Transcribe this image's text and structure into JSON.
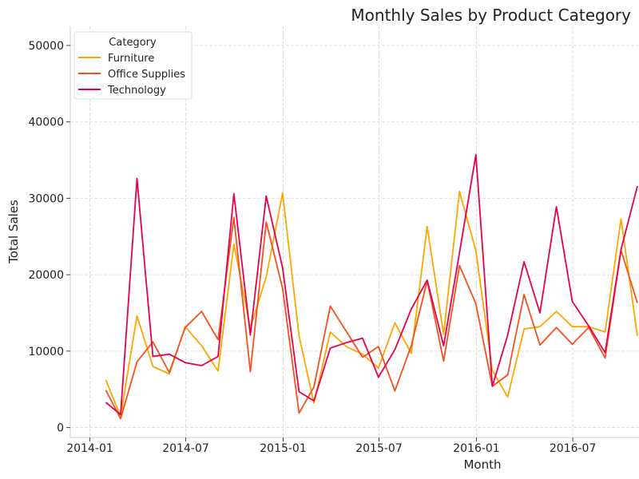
{
  "chart_data": {
    "type": "line",
    "title": "Monthly Sales by Product Category",
    "xlabel": "Month",
    "ylabel": "Total Sales",
    "xlim": [
      "2013-11-25",
      "2016-11-03"
    ],
    "ylim": [
      -1300,
      52500
    ],
    "x_ticks": [
      "2014-01",
      "2014-07",
      "2015-01",
      "2015-07",
      "2016-01",
      "2016-07"
    ],
    "y_ticks": [
      0,
      10000,
      20000,
      30000,
      40000,
      50000
    ],
    "grid": true,
    "legend": {
      "title": "Category",
      "placement": "top-left"
    },
    "x": [
      "2014-01-31",
      "2014-02-28",
      "2014-03-31",
      "2014-04-30",
      "2014-05-31",
      "2014-06-30",
      "2014-07-31",
      "2014-08-31",
      "2014-09-30",
      "2014-10-31",
      "2014-11-30",
      "2014-12-31",
      "2015-01-31",
      "2015-02-28",
      "2015-03-31",
      "2015-04-30",
      "2015-05-31",
      "2015-06-30",
      "2015-07-31",
      "2015-08-31",
      "2015-09-30",
      "2015-10-31",
      "2015-11-30",
      "2015-12-31",
      "2016-01-31",
      "2016-02-29",
      "2016-03-31",
      "2016-04-30",
      "2016-05-31",
      "2016-06-30",
      "2016-07-31",
      "2016-08-31",
      "2016-09-30",
      "2016-10-31"
    ],
    "series": [
      {
        "name": "Furniture",
        "color": "#FFA500",
        "values": [
          6250,
          1460,
          14600,
          8000,
          7000,
          13200,
          10700,
          7400,
          24000,
          13000,
          19700,
          30700,
          12000,
          3200,
          12500,
          10600,
          9600,
          7800,
          13700,
          9700,
          26300,
          12200,
          30900,
          23100,
          7500,
          4000,
          12900,
          13200,
          15200,
          13200,
          13200,
          12500,
          27300,
          12000
        ]
      },
      {
        "name": "Office Supplies",
        "color": "#F4511E",
        "values": [
          4900,
          1150,
          8600,
          11200,
          7200,
          13100,
          15200,
          11500,
          27500,
          7300,
          26900,
          18200,
          1900,
          5300,
          15900,
          12600,
          9200,
          10600,
          4800,
          10700,
          19200,
          8700,
          21200,
          16200,
          5400,
          6900,
          17400,
          10800,
          13100,
          10900,
          13100,
          9100,
          23200,
          16300
        ]
      },
      {
        "name": "Technology",
        "color": "#E8004A",
        "values": [
          3300,
          1700,
          32600,
          9300,
          9600,
          8500,
          8100,
          9300,
          30600,
          12100,
          30300,
          20900,
          4700,
          3500,
          10400,
          11100,
          11700,
          6600,
          10200,
          15500,
          19300,
          10700,
          22900,
          35700,
          5400,
          12100,
          21700,
          15000,
          28900,
          16500,
          13300,
          9800,
          23300,
          31600
        ]
      }
    ]
  }
}
